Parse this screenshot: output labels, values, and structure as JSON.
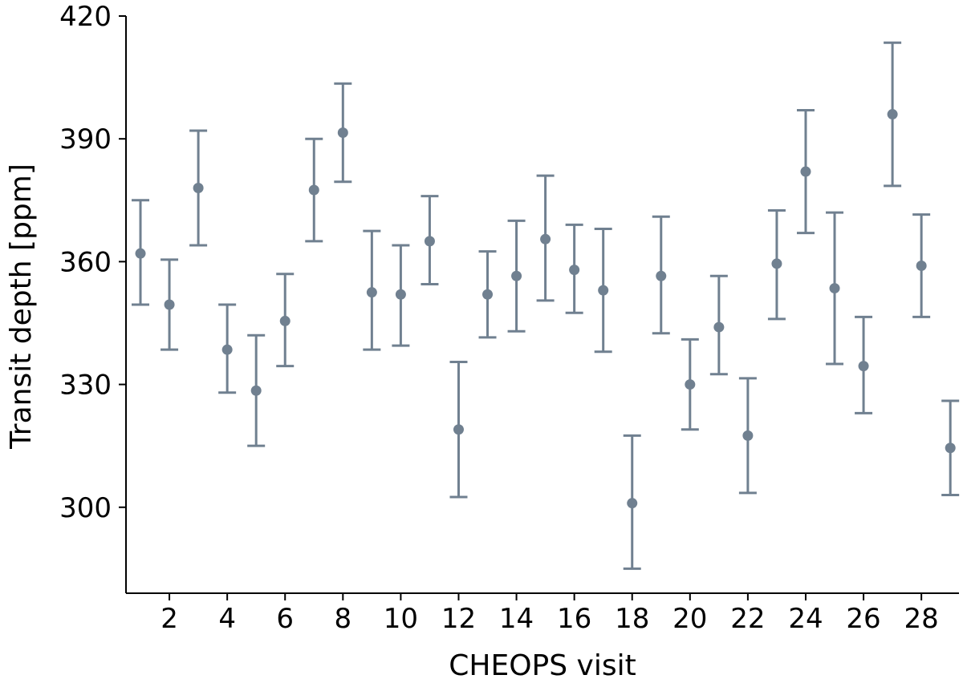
{
  "chart_data": {
    "type": "scatter",
    "title": "",
    "xlabel": "CHEOPS visit",
    "ylabel": "Transit depth [ppm]",
    "xlim": [
      0.5,
      29.3
    ],
    "ylim": [
      279,
      420
    ],
    "xticks": [
      2,
      4,
      6,
      8,
      10,
      12,
      14,
      16,
      18,
      20,
      22,
      24,
      26,
      28
    ],
    "yticks": [
      300,
      330,
      360,
      390,
      420
    ],
    "grid": false,
    "legend": "none",
    "error_bars": true,
    "series": [
      {
        "color": "#708090",
        "x": [
          1,
          2,
          3,
          4,
          5,
          6,
          7,
          8,
          9,
          10,
          11,
          12,
          13,
          14,
          15,
          16,
          17,
          18,
          19,
          20,
          21,
          22,
          23,
          24,
          25,
          26,
          27,
          28,
          29
        ],
        "y": [
          362,
          349.5,
          378,
          338.5,
          328.5,
          345.5,
          377.5,
          391.5,
          352.5,
          352,
          365,
          319,
          352,
          356.5,
          365.5,
          358,
          353,
          301,
          356.5,
          330,
          344,
          317.5,
          359.5,
          382,
          353.5,
          334.5,
          396,
          359,
          314.5
        ],
        "y_low": [
          349.5,
          338.5,
          364,
          328,
          315,
          334.5,
          365,
          379.5,
          338.5,
          339.5,
          354.5,
          302.5,
          341.5,
          343,
          350.5,
          347.5,
          338,
          285,
          342.5,
          319,
          332.5,
          303.5,
          346,
          367,
          335,
          323,
          378.5,
          346.5,
          303
        ],
        "y_high": [
          375,
          360.5,
          392,
          349.5,
          342,
          357,
          390,
          403.5,
          367.5,
          364,
          376,
          335.5,
          362.5,
          370,
          381,
          369,
          368,
          317.5,
          371,
          341,
          356.5,
          331.5,
          372.5,
          397,
          372,
          346.5,
          413.5,
          371.5,
          326
        ]
      }
    ]
  }
}
